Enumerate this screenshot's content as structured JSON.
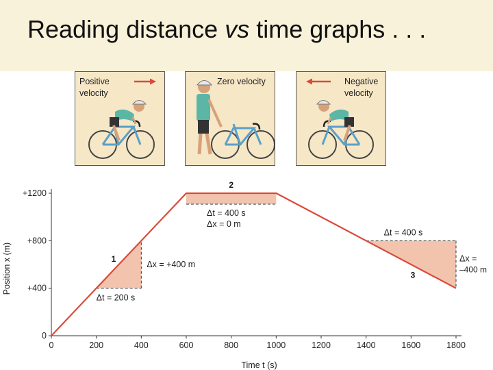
{
  "title": {
    "main": "Reading distance ",
    "vs": "vs",
    "rest": " time graphs . . ."
  },
  "panels": [
    {
      "line1": "Positive",
      "line2": "velocity",
      "arrow": "right"
    },
    {
      "line1": "Zero velocity",
      "line2": "",
      "arrow": "none"
    },
    {
      "line1": "Negative",
      "line2": "velocity",
      "arrow": "left"
    }
  ],
  "colors": {
    "line": "#d94a3a",
    "fill": "#f3c4ad",
    "panel": "#f6e7c7",
    "title_bar": "#f8f2da"
  },
  "chart_data": {
    "type": "line",
    "xlabel": "Time t (s)",
    "ylabel": "Position x (m)",
    "xlim": [
      0,
      1800
    ],
    "ylim": [
      0,
      1200
    ],
    "x_ticks": [
      "0",
      "200",
      "400",
      "600",
      "800",
      "1000",
      "1200",
      "1400",
      "1600",
      "1800"
    ],
    "y_ticks": [
      "0",
      "+400",
      "+800",
      "+1200"
    ],
    "series": [
      {
        "x": [
          0,
          600,
          1000,
          1800
        ],
        "y": [
          0,
          1200,
          1200,
          400
        ]
      }
    ],
    "segments": [
      {
        "label": "1",
        "t0": 200,
        "t1": 400,
        "x0": 400,
        "x1": 800,
        "dt": "Δt = 200 s",
        "dx": "Δx = +400 m"
      },
      {
        "label": "2",
        "t0": 600,
        "t1": 1000,
        "x0": 1200,
        "x1": 1200,
        "dt": "Δt = 400 s",
        "dx": "Δx = 0 m"
      },
      {
        "label": "3",
        "t0": 1400,
        "t1": 1800,
        "x0": 800,
        "x1": 400,
        "dt": "Δt = 400 s",
        "dx_line1": "Δx =",
        "dx_line2": "–400 m"
      }
    ]
  }
}
